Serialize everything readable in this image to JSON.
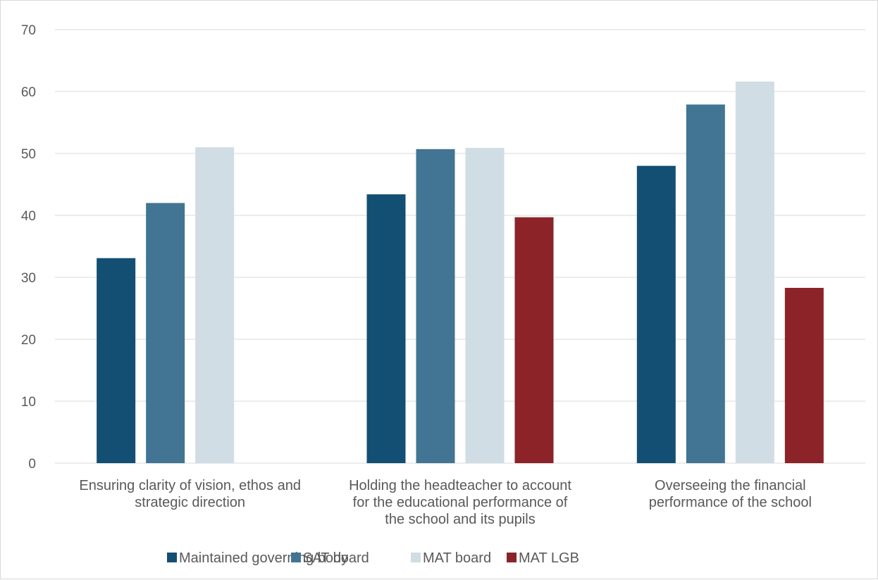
{
  "chart_data": {
    "type": "bar",
    "categories": [
      [
        "Ensuring clarity of vision, ethos and",
        "strategic direction"
      ],
      [
        "Holding the headteacher to account",
        "for the educational performance of",
        "the school and its pupils"
      ],
      [
        "Overseeing the financial",
        "performance of the school"
      ]
    ],
    "series": [
      {
        "name": "Maintained governing body",
        "color": "#134f73",
        "values": [
          33.1,
          43.4,
          48.0
        ]
      },
      {
        "name": "SAT board",
        "color": "#427593",
        "values": [
          42.0,
          50.7,
          57.9
        ]
      },
      {
        "name": "MAT board",
        "color": "#d0dde4",
        "values": [
          51.0,
          50.9,
          61.6
        ]
      },
      {
        "name": "MAT LGB",
        "color": "#8b2329",
        "values": [
          null,
          39.7,
          28.3
        ]
      }
    ],
    "ylim": [
      0,
      70
    ],
    "yticks": [
      0,
      10,
      20,
      30,
      40,
      50,
      60,
      70
    ],
    "grid": true,
    "legend_position": "bottom"
  }
}
